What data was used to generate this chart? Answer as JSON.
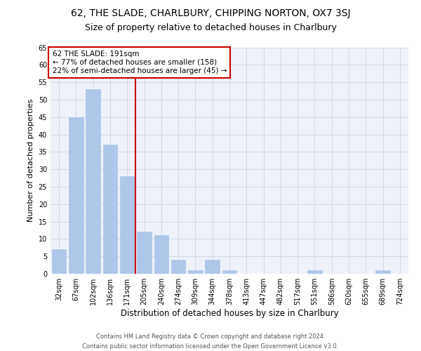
{
  "title1": "62, THE SLADE, CHARLBURY, CHIPPING NORTON, OX7 3SJ",
  "title2": "Size of property relative to detached houses in Charlbury",
  "xlabel": "Distribution of detached houses by size in Charlbury",
  "ylabel": "Number of detached properties",
  "categories": [
    "32sqm",
    "67sqm",
    "102sqm",
    "136sqm",
    "171sqm",
    "205sqm",
    "240sqm",
    "274sqm",
    "309sqm",
    "344sqm",
    "378sqm",
    "413sqm",
    "447sqm",
    "482sqm",
    "517sqm",
    "551sqm",
    "586sqm",
    "620sqm",
    "655sqm",
    "689sqm",
    "724sqm"
  ],
  "values": [
    7,
    45,
    53,
    37,
    28,
    12,
    11,
    4,
    1,
    4,
    1,
    0,
    0,
    0,
    0,
    1,
    0,
    0,
    0,
    1,
    0
  ],
  "bar_color": "#aec6e8",
  "bar_edge_color": "#aec6e8",
  "grid_color": "#d0d8e8",
  "bg_color": "#eef2f8",
  "vline_color": "#cc0000",
  "annotation_text": "62 THE SLADE: 191sqm\n← 77% of detached houses are smaller (158)\n22% of semi-detached houses are larger (45) →",
  "annotation_box_color": "#ffffff",
  "annotation_box_edge": "#cc0000",
  "ylim": [
    0,
    65
  ],
  "yticks": [
    0,
    5,
    10,
    15,
    20,
    25,
    30,
    35,
    40,
    45,
    50,
    55,
    60,
    65
  ],
  "footer": "Contains HM Land Registry data © Crown copyright and database right 2024.\nContains public sector information licensed under the Open Government Licence v3.0.",
  "title1_fontsize": 10,
  "title2_fontsize": 9,
  "xlabel_fontsize": 8.5,
  "ylabel_fontsize": 8,
  "tick_fontsize": 7,
  "annotation_fontsize": 7.5,
  "footer_fontsize": 6
}
